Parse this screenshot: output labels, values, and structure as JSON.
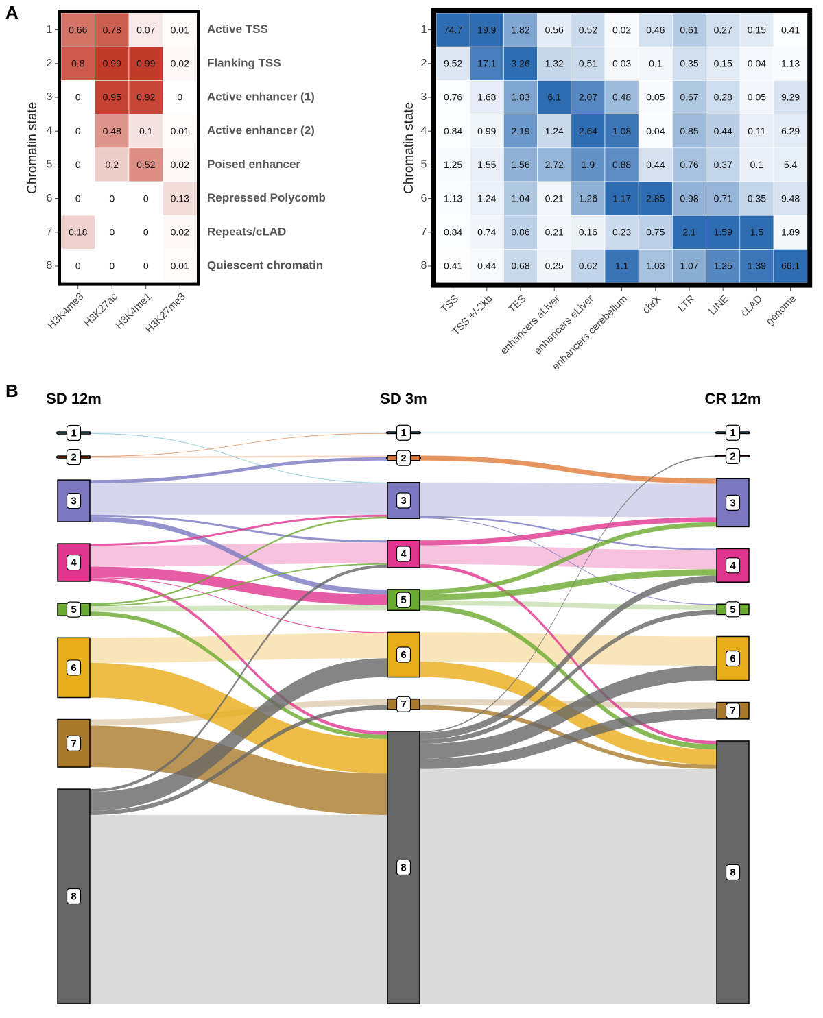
{
  "chart_data": [
    {
      "type": "heatmap",
      "panel": "A",
      "y_label": "Chromatin state",
      "rows": [
        "1",
        "2",
        "3",
        "4",
        "5",
        "6",
        "7",
        "8"
      ],
      "row_labels": [
        "Active TSS",
        "Flanking TSS",
        "Active enhancer (1)",
        "Active enhancer (2)",
        "Poised enhancer",
        "Repressed Polycomb",
        "Repeats/cLAD",
        "Quiescent chromatin"
      ],
      "columns": [
        "H3K4me3",
        "H3K27ac",
        "H3K4me1",
        "H3K27me3"
      ],
      "values": [
        [
          0.66,
          0.78,
          0.07,
          0.01
        ],
        [
          0.8,
          0.99,
          0.99,
          0.02
        ],
        [
          0,
          0.95,
          0.92,
          0
        ],
        [
          0,
          0.48,
          0.1,
          0.01
        ],
        [
          0,
          0.2,
          0.52,
          0.02
        ],
        [
          0,
          0,
          0,
          0.13
        ],
        [
          0.18,
          0,
          0,
          0.02
        ],
        [
          0,
          0,
          0,
          0.01
        ]
      ],
      "color": "#c23b2a",
      "scale": "global"
    },
    {
      "type": "heatmap",
      "y_label": "Chromatin state",
      "rows": [
        "1",
        "2",
        "3",
        "4",
        "5",
        "6",
        "7",
        "8"
      ],
      "columns": [
        "TSS",
        "TSS +/-2kb",
        "TES",
        "enhancers aLiver",
        "enhancers eLiver",
        "enhancers cerebellum",
        "chrX",
        "LTR",
        "LINE",
        "cLAD",
        "genome"
      ],
      "values": [
        [
          74.7,
          19.9,
          1.82,
          0.56,
          0.52,
          0.02,
          0.46,
          0.61,
          0.27,
          0.15,
          0.41
        ],
        [
          9.52,
          17.1,
          3.26,
          1.32,
          0.51,
          0.03,
          0.1,
          0.35,
          0.15,
          0.04,
          1.13
        ],
        [
          0.76,
          1.68,
          1.83,
          6.1,
          2.07,
          0.48,
          0.05,
          0.67,
          0.28,
          0.05,
          9.29
        ],
        [
          0.84,
          0.99,
          2.19,
          1.24,
          2.64,
          1.08,
          0.04,
          0.85,
          0.44,
          0.11,
          6.29
        ],
        [
          1.25,
          1.55,
          1.56,
          2.72,
          1.9,
          0.88,
          0.44,
          0.76,
          0.37,
          0.1,
          5.4
        ],
        [
          1.13,
          1.24,
          1.04,
          0.21,
          1.26,
          1.17,
          2.85,
          0.98,
          0.71,
          0.35,
          9.48
        ],
        [
          0.84,
          0.74,
          0.86,
          0.21,
          0.16,
          0.23,
          0.75,
          2.1,
          1.59,
          1.5,
          1.89
        ],
        [
          0.41,
          0.44,
          0.68,
          0.25,
          0.62,
          1.1,
          1.03,
          1.07,
          1.25,
          1.39,
          66.1
        ]
      ],
      "color": "#2f6db3",
      "scale": "column"
    },
    {
      "type": "sankey",
      "panel": "B",
      "columns": [
        "SD 12m",
        "SD 3m",
        "CR 12m"
      ],
      "states": [
        "1",
        "2",
        "3",
        "4",
        "5",
        "6",
        "7",
        "8"
      ],
      "colors": [
        "#8ccbd9",
        "#e07b39",
        "#7b78c0",
        "#e0358f",
        "#6aaa2e",
        "#e8ad1a",
        "#a97a2c",
        "#666666"
      ],
      "nodes": [
        [
          0.5,
          0.5,
          10,
          9,
          3.0,
          14.3,
          11.4,
          51.3
        ],
        [
          0.4,
          1.2,
          8.6,
          6.5,
          5.0,
          10.7,
          2.5,
          65.1
        ],
        [
          0.4,
          0.3,
          11.5,
          8.0,
          2.5,
          10.5,
          4.0,
          62.8
        ]
      ],
      "flows": [
        [
          {
            "source": "1",
            "target": "1",
            "value": 0.3
          },
          {
            "source": "1",
            "target": "3",
            "value": 0.2
          },
          {
            "source": "2",
            "target": "1",
            "value": 0.1
          },
          {
            "source": "2",
            "target": "2",
            "value": 0.4
          },
          {
            "source": "3",
            "target": "2",
            "value": 0.8
          },
          {
            "source": "3",
            "target": "3",
            "value": 7.5
          },
          {
            "source": "3",
            "target": "4",
            "value": 0.5
          },
          {
            "source": "3",
            "target": "5",
            "value": 1.2
          },
          {
            "source": "4",
            "target": "3",
            "value": 0.5
          },
          {
            "source": "4",
            "target": "4",
            "value": 5.0
          },
          {
            "source": "4",
            "target": "5",
            "value": 2.5
          },
          {
            "source": "4",
            "target": "6",
            "value": 0.2
          },
          {
            "source": "4",
            "target": "8",
            "value": 0.8
          },
          {
            "source": "5",
            "target": "3",
            "value": 0.4
          },
          {
            "source": "5",
            "target": "4",
            "value": 0.3
          },
          {
            "source": "5",
            "target": "5",
            "value": 1.3
          },
          {
            "source": "5",
            "target": "8",
            "value": 1.0
          },
          {
            "source": "6",
            "target": "6",
            "value": 6.0
          },
          {
            "source": "6",
            "target": "8",
            "value": 8.3
          },
          {
            "source": "7",
            "target": "7",
            "value": 1.5
          },
          {
            "source": "7",
            "target": "8",
            "value": 9.9
          },
          {
            "source": "8",
            "target": "4",
            "value": 0.7
          },
          {
            "source": "8",
            "target": "6",
            "value": 4.5
          },
          {
            "source": "8",
            "target": "7",
            "value": 1.0
          },
          {
            "source": "8",
            "target": "8",
            "value": 45.1
          }
        ],
        [
          {
            "source": "1",
            "target": "1",
            "value": 0.4
          },
          {
            "source": "2",
            "target": "3",
            "value": 1.2
          },
          {
            "source": "3",
            "target": "3",
            "value": 8.0
          },
          {
            "source": "3",
            "target": "4",
            "value": 0.4
          },
          {
            "source": "3",
            "target": "5",
            "value": 0.2
          },
          {
            "source": "4",
            "target": "3",
            "value": 1.2
          },
          {
            "source": "4",
            "target": "4",
            "value": 4.5
          },
          {
            "source": "4",
            "target": "8",
            "value": 0.8
          },
          {
            "source": "5",
            "target": "3",
            "value": 1.1
          },
          {
            "source": "5",
            "target": "4",
            "value": 1.5
          },
          {
            "source": "5",
            "target": "5",
            "value": 1.2
          },
          {
            "source": "5",
            "target": "8",
            "value": 1.2
          },
          {
            "source": "6",
            "target": "6",
            "value": 7.0
          },
          {
            "source": "6",
            "target": "8",
            "value": 3.7
          },
          {
            "source": "7",
            "target": "7",
            "value": 1.5
          },
          {
            "source": "7",
            "target": "8",
            "value": 1.0
          },
          {
            "source": "8",
            "target": "2",
            "value": 0.3
          },
          {
            "source": "8",
            "target": "4",
            "value": 1.6
          },
          {
            "source": "8",
            "target": "5",
            "value": 1.1
          },
          {
            "source": "8",
            "target": "6",
            "value": 3.5
          },
          {
            "source": "8",
            "target": "7",
            "value": 2.5
          },
          {
            "source": "8",
            "target": "8",
            "value": 56.1
          }
        ]
      ]
    }
  ]
}
